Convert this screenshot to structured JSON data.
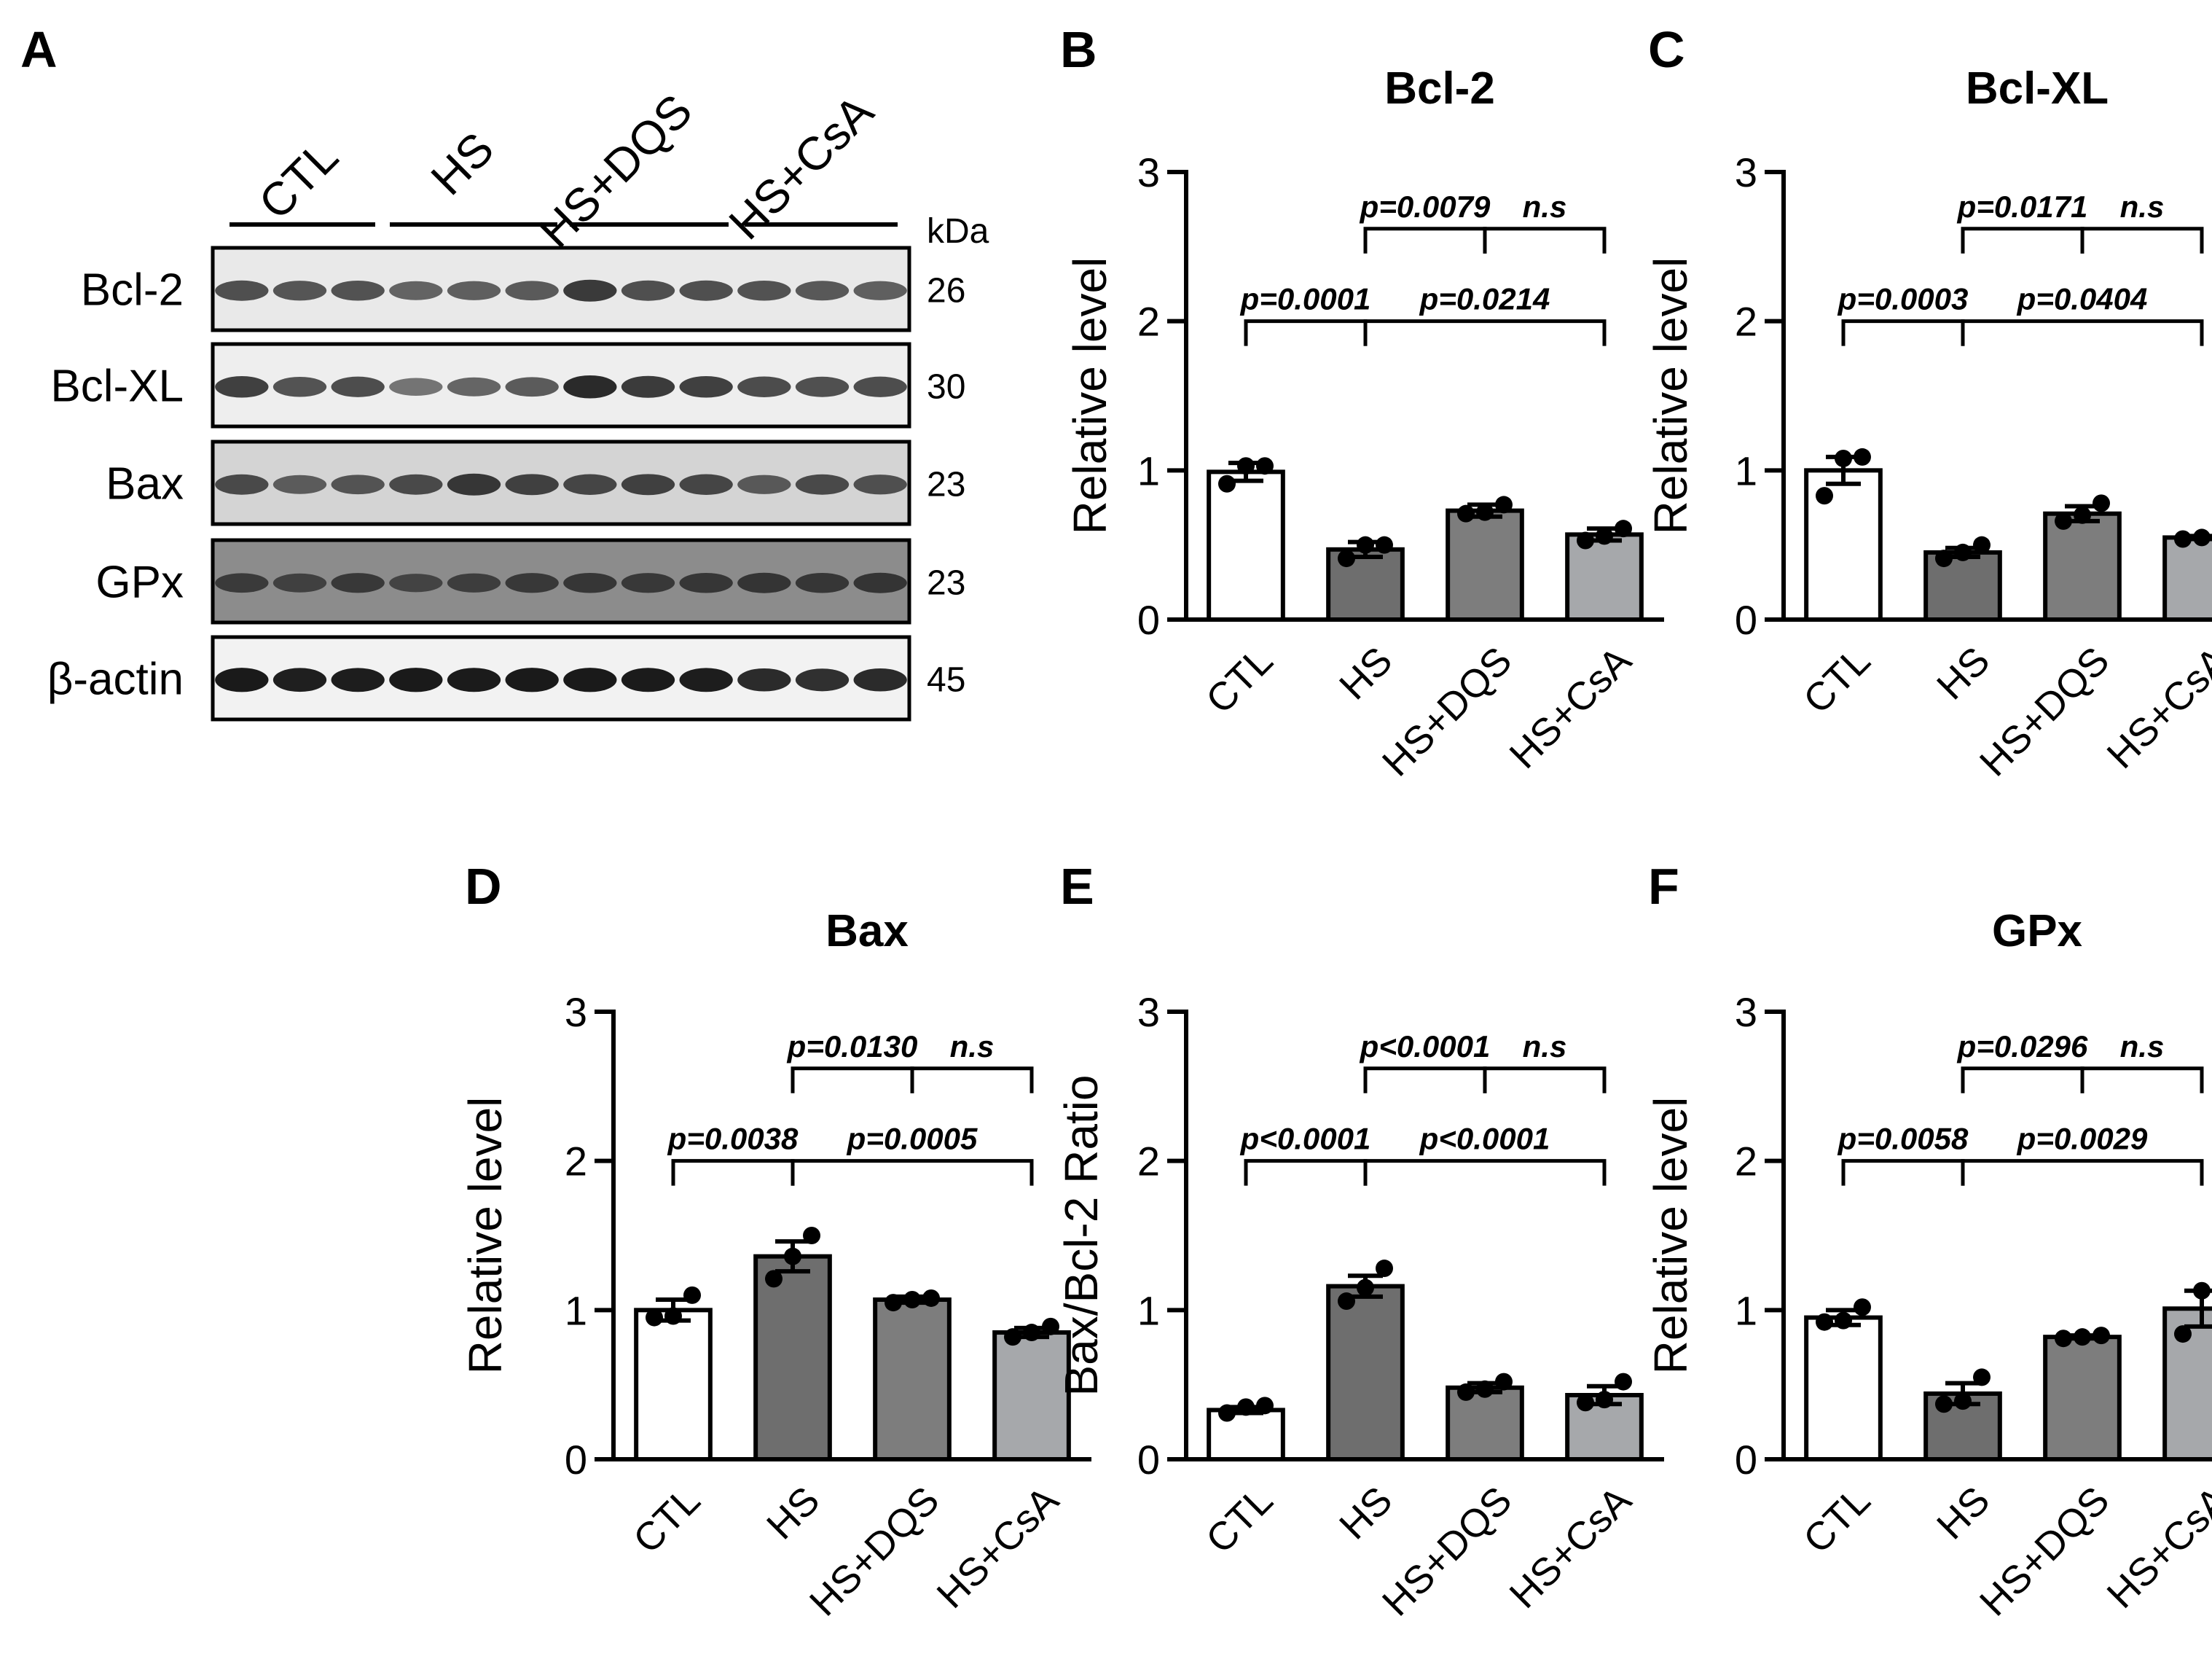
{
  "western_blot": {
    "panel": "A",
    "groups": [
      "CTL",
      "HS",
      "HS+DQS",
      "HS+CsA"
    ],
    "unit": "kDa",
    "blots": [
      {
        "protein": "Bcl-2",
        "kda": "26",
        "bg": "#e9e9e9",
        "intensity": [
          0.62,
          0.58,
          0.6,
          0.5,
          0.52,
          0.55,
          0.75,
          0.62,
          0.62,
          0.6,
          0.56,
          0.52
        ]
      },
      {
        "protein": "Bcl-XL",
        "kda": "30",
        "bg": "#eeeeee",
        "intensity": [
          0.72,
          0.6,
          0.64,
          0.4,
          0.5,
          0.55,
          0.85,
          0.75,
          0.72,
          0.65,
          0.62,
          0.64
        ]
      },
      {
        "protein": "Bax",
        "kda": "23",
        "bg": "#d4d4d4",
        "intensity": [
          0.62,
          0.5,
          0.55,
          0.62,
          0.75,
          0.68,
          0.65,
          0.68,
          0.65,
          0.52,
          0.62,
          0.58
        ]
      },
      {
        "protein": "GPx",
        "kda": "23",
        "bg": "#8c8c8c",
        "intensity": [
          0.55,
          0.5,
          0.58,
          0.45,
          0.52,
          0.58,
          0.6,
          0.58,
          0.6,
          0.62,
          0.6,
          0.62
        ]
      },
      {
        "protein": "β-actin",
        "kda": "45",
        "bg": "#f2f2f2",
        "intensity": [
          0.95,
          0.92,
          0.93,
          0.95,
          0.94,
          0.95,
          0.95,
          0.94,
          0.93,
          0.85,
          0.82,
          0.85
        ]
      }
    ]
  },
  "chart_data": [
    {
      "panel": "B",
      "type": "bar",
      "title": "Bcl-2",
      "ylabel": "Relative level",
      "categories": [
        "CTL",
        "HS",
        "HS+DQS",
        "HS+CsA"
      ],
      "values": [
        0.99,
        0.47,
        0.73,
        0.57
      ],
      "errors": [
        0.06,
        0.05,
        0.04,
        0.04
      ],
      "points": [
        [
          0.91,
          1.03,
          1.03
        ],
        [
          0.41,
          0.5,
          0.5
        ],
        [
          0.71,
          0.72,
          0.77
        ],
        [
          0.53,
          0.56,
          0.61
        ]
      ],
      "ylim": [
        0,
        3
      ],
      "yticks": [
        0,
        1,
        2,
        3
      ],
      "comparisons": [
        {
          "from": 0,
          "to": 1,
          "label": "p=0.0001",
          "level": 0
        },
        {
          "from": 1,
          "to": 3,
          "label": "p=0.0214",
          "level": 0
        },
        {
          "from": 1,
          "to": 2,
          "label": "p=0.0079",
          "level": 1
        },
        {
          "from": 2,
          "to": 3,
          "label": "n.s",
          "level": 1
        }
      ]
    },
    {
      "panel": "C",
      "type": "bar",
      "title": "Bcl-XL",
      "ylabel": "Relative level",
      "categories": [
        "CTL",
        "HS",
        "HS+DQS",
        "HS+CsA"
      ],
      "values": [
        1.0,
        0.45,
        0.71,
        0.55
      ],
      "errors": [
        0.09,
        0.03,
        0.05,
        0.01
      ],
      "points": [
        [
          0.83,
          1.08,
          1.09
        ],
        [
          0.41,
          0.45,
          0.5
        ],
        [
          0.66,
          0.7,
          0.78
        ],
        [
          0.54,
          0.55,
          0.56
        ]
      ],
      "ylim": [
        0,
        3
      ],
      "yticks": [
        0,
        1,
        2,
        3
      ],
      "comparisons": [
        {
          "from": 0,
          "to": 1,
          "label": "p=0.0003",
          "level": 0
        },
        {
          "from": 1,
          "to": 3,
          "label": "p=0.0404",
          "level": 0
        },
        {
          "from": 1,
          "to": 2,
          "label": "p=0.0171",
          "level": 1
        },
        {
          "from": 2,
          "to": 3,
          "label": "n.s",
          "level": 1
        }
      ]
    },
    {
      "panel": "D",
      "type": "bar",
      "title": "Bax",
      "ylabel": "Relative level",
      "categories": [
        "CTL",
        "HS",
        "HS+DQS",
        "HS+CsA"
      ],
      "values": [
        1.0,
        1.36,
        1.07,
        0.85
      ],
      "errors": [
        0.07,
        0.1,
        0.02,
        0.03
      ],
      "points": [
        [
          0.95,
          0.96,
          1.1
        ],
        [
          1.21,
          1.36,
          1.5
        ],
        [
          1.05,
          1.07,
          1.08
        ],
        [
          0.82,
          0.85,
          0.89
        ]
      ],
      "ylim": [
        0,
        3
      ],
      "yticks": [
        0,
        1,
        2,
        3
      ],
      "comparisons": [
        {
          "from": 0,
          "to": 1,
          "label": "p=0.0038",
          "level": 0
        },
        {
          "from": 1,
          "to": 3,
          "label": "p=0.0005",
          "level": 0
        },
        {
          "from": 1,
          "to": 2,
          "label": "p=0.0130",
          "level": 1
        },
        {
          "from": 2,
          "to": 3,
          "label": "n.s",
          "level": 1
        }
      ]
    },
    {
      "panel": "E",
      "type": "bar",
      "title": "",
      "ylabel": "Bax/Bcl-2 Ratio",
      "categories": [
        "CTL",
        "HS",
        "HS+DQS",
        "HS+CsA"
      ],
      "values": [
        0.33,
        1.16,
        0.48,
        0.43
      ],
      "errors": [
        0.02,
        0.07,
        0.03,
        0.06
      ],
      "points": [
        [
          0.31,
          0.35,
          0.36
        ],
        [
          1.06,
          1.15,
          1.28
        ],
        [
          0.45,
          0.47,
          0.52
        ],
        [
          0.38,
          0.4,
          0.52
        ]
      ],
      "ylim": [
        0,
        3
      ],
      "yticks": [
        0,
        1,
        2,
        3
      ],
      "comparisons": [
        {
          "from": 0,
          "to": 1,
          "label": "p<0.0001",
          "level": 0
        },
        {
          "from": 1,
          "to": 3,
          "label": "p<0.0001",
          "level": 0
        },
        {
          "from": 1,
          "to": 2,
          "label": "p<0.0001",
          "level": 1
        },
        {
          "from": 2,
          "to": 3,
          "label": "n.s",
          "level": 1
        }
      ]
    },
    {
      "panel": "F",
      "type": "bar",
      "title": "GPx",
      "ylabel": "Relative level",
      "categories": [
        "CTL",
        "HS",
        "HS+DQS",
        "HS+CsA"
      ],
      "values": [
        0.95,
        0.44,
        0.82,
        1.01
      ],
      "errors": [
        0.05,
        0.07,
        0.01,
        0.12
      ],
      "points": [
        [
          0.92,
          0.93,
          1.02
        ],
        [
          0.37,
          0.39,
          0.55
        ],
        [
          0.81,
          0.82,
          0.83
        ],
        [
          0.84,
          1.13,
          1.15
        ]
      ],
      "ylim": [
        0,
        3
      ],
      "yticks": [
        0,
        1,
        2,
        3
      ],
      "comparisons": [
        {
          "from": 0,
          "to": 1,
          "label": "p=0.0058",
          "level": 0
        },
        {
          "from": 1,
          "to": 3,
          "label": "p=0.0029",
          "level": 0
        },
        {
          "from": 1,
          "to": 2,
          "label": "p=0.0296",
          "level": 1
        },
        {
          "from": 2,
          "to": 3,
          "label": "n.s",
          "level": 1
        }
      ]
    }
  ],
  "colors": {
    "bars": [
      "#ffffff",
      "#6e6e6e",
      "#7d7d7d",
      "#a6a8ab"
    ],
    "axis": "#000000",
    "band": "#111111"
  }
}
